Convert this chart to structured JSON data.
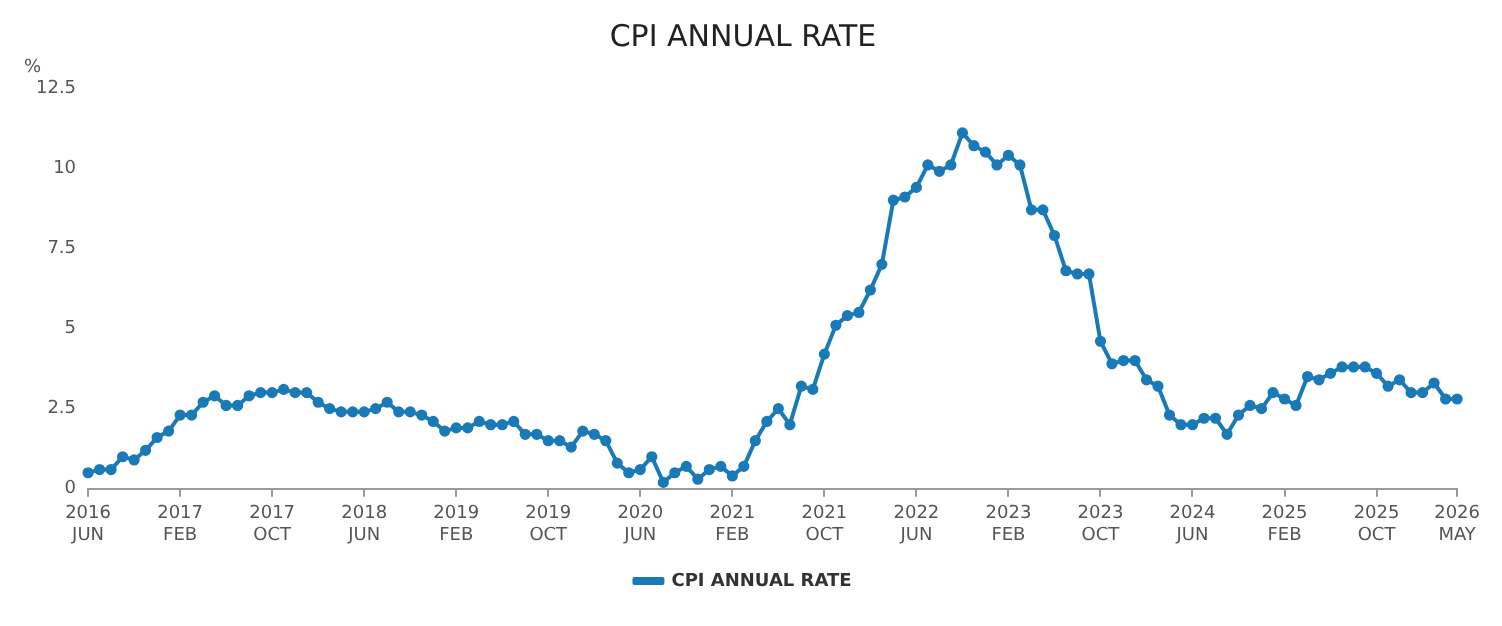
{
  "chart_data": {
    "type": "line",
    "title": "CPI ANNUAL RATE",
    "ylabel": "%",
    "categories": [
      "2016 JUN",
      null,
      null,
      null,
      null,
      null,
      null,
      null,
      "2017 FEB",
      null,
      null,
      null,
      null,
      null,
      null,
      null,
      "2017 OCT",
      null,
      null,
      null,
      null,
      null,
      null,
      null,
      "2018 JUN",
      null,
      null,
      null,
      null,
      null,
      null,
      null,
      "2019 FEB",
      null,
      null,
      null,
      null,
      null,
      null,
      null,
      "2019 OCT",
      null,
      null,
      null,
      null,
      null,
      null,
      null,
      "2020 JUN",
      null,
      null,
      null,
      null,
      null,
      null,
      null,
      "2021 FEB",
      null,
      null,
      null,
      null,
      null,
      null,
      null,
      "2021 OCT",
      null,
      null,
      null,
      null,
      null,
      null,
      null,
      "2022 JUN",
      null,
      null,
      null,
      null,
      null,
      null,
      null,
      "2023 FEB",
      null,
      null,
      null,
      null,
      null,
      null,
      null,
      "2023 OCT",
      null,
      null,
      null,
      null,
      null,
      null,
      null,
      "2024 JUN",
      null,
      null,
      null,
      null,
      null,
      null,
      null,
      "2025 FEB",
      null,
      null,
      null,
      null,
      null,
      null,
      null,
      "2025 OCT",
      null,
      null,
      null,
      null,
      null,
      null,
      "2026 MAY"
    ],
    "series": [
      {
        "name": "CPI ANNUAL RATE",
        "color": "#1a7ab8",
        "values": [
          0.5,
          0.6,
          0.6,
          1.0,
          0.9,
          1.2,
          1.6,
          1.8,
          2.3,
          2.3,
          2.7,
          2.9,
          2.6,
          2.6,
          2.9,
          3.0,
          3.0,
          3.1,
          3.0,
          3.0,
          2.7,
          2.5,
          2.4,
          2.4,
          2.4,
          2.5,
          2.7,
          2.4,
          2.4,
          2.3,
          2.1,
          1.8,
          1.9,
          1.9,
          2.1,
          2.0,
          2.0,
          2.1,
          1.7,
          1.7,
          1.5,
          1.5,
          1.3,
          1.8,
          1.7,
          1.5,
          0.8,
          0.5,
          0.6,
          1.0,
          0.2,
          0.5,
          0.7,
          0.3,
          0.6,
          0.7,
          0.4,
          0.7,
          1.5,
          2.1,
          2.5,
          2.0,
          3.2,
          3.1,
          4.2,
          5.1,
          5.4,
          5.5,
          6.2,
          7.0,
          9.0,
          9.1,
          9.4,
          10.1,
          9.9,
          10.1,
          11.1,
          10.7,
          10.5,
          10.1,
          10.4,
          10.1,
          8.7,
          8.7,
          7.9,
          6.8,
          6.7,
          6.7,
          4.6,
          3.9,
          4.0,
          4.0,
          3.4,
          3.2,
          2.3,
          2.0,
          2.0,
          2.2,
          2.2,
          1.7,
          2.3,
          2.6,
          2.5,
          3.0,
          2.8,
          2.6,
          3.5,
          3.4,
          3.6,
          3.8,
          3.8,
          3.8,
          3.6,
          3.2,
          3.4,
          3.0,
          3.0,
          3.3,
          2.8,
          2.8
        ]
      }
    ],
    "ylim": [
      0,
      12.5
    ],
    "yticks": [
      0,
      2.5,
      5,
      7.5,
      10,
      12.5
    ],
    "grid": false,
    "legend": "bottom",
    "marker": "circle",
    "line_style": "solid"
  }
}
